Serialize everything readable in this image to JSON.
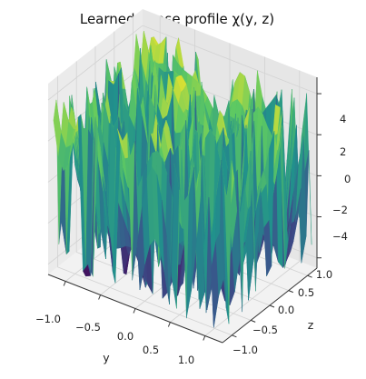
{
  "chart_data": {
    "type": "surface3d",
    "title": "Learned phase profile χ(y, z)",
    "xlabel": "y",
    "ylabel": "z",
    "zlabel": "",
    "xlim": [
      -1.25,
      1.25
    ],
    "ylim": [
      -1.25,
      1.25
    ],
    "zlim": [
      -4.5,
      4.8
    ],
    "x_ticks": [
      "−1.0",
      "−0.5",
      "0.0",
      "0.5",
      "1.0"
    ],
    "y_ticks": [
      "−1.0",
      "−0.5",
      "0.0",
      "0.5",
      "1.0"
    ],
    "z_ticks": [
      "−4",
      "−2",
      "0",
      "2",
      "4"
    ],
    "grid": true,
    "colormap": "viridis",
    "colormap_stops": [
      "#440154",
      "#3b528b",
      "#21918c",
      "#5ec962",
      "#fde725"
    ],
    "pane_color": "#f2f2f2"
  }
}
